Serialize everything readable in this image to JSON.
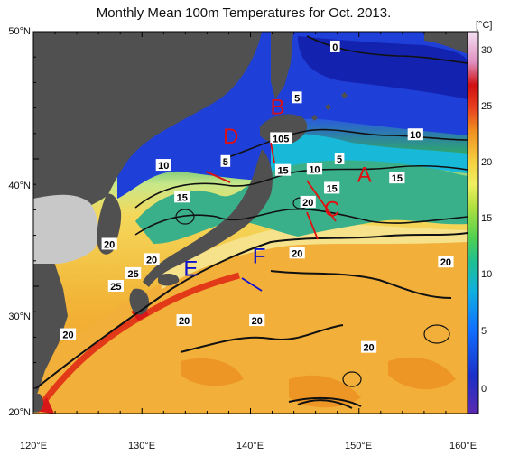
{
  "title": "Monthly Mean 100m Temperatures for Oct. 2013.",
  "colorbar": {
    "unit": "[°C]",
    "ticks": [
      "30",
      "25",
      "20",
      "15",
      "10",
      "5",
      "0"
    ]
  },
  "axes": {
    "lat_labels": [
      "50°N",
      "40°N",
      "30°N",
      "20°N"
    ],
    "lon_labels": [
      "120°E",
      "130°E",
      "140°E",
      "150°E",
      "160°E"
    ]
  },
  "contour_labels": [
    "0",
    "5",
    "10",
    "15",
    "20",
    "25"
  ],
  "region_labels": [
    "A",
    "B",
    "C",
    "D",
    "E",
    "F"
  ],
  "colors": {
    "land": "#505050",
    "no_data": "#c8c8c8",
    "warm": "#f0a020",
    "cold": "#1d3fd0",
    "mark_red": "#e01010",
    "mark_blue": "#1010d0"
  },
  "chart_data": {
    "type": "heatmap",
    "title": "Monthly Mean 100m Temperatures for Oct. 2013.",
    "variable": "temperature at 100 m depth",
    "unit": "°C",
    "lon_range": [
      120,
      160
    ],
    "lat_range": [
      20,
      50
    ],
    "colorbar_range": [
      -2,
      32
    ],
    "regions": [
      {
        "id": "A",
        "lon": 150.5,
        "lat": 38.2
      },
      {
        "id": "B",
        "lon": 142.5,
        "lat": 43.5
      },
      {
        "id": "C",
        "lon": 147.5,
        "lat": 35.5
      },
      {
        "id": "D",
        "lon": 138.2,
        "lat": 41.2
      },
      {
        "id": "E",
        "lon": 134.5,
        "lat": 30.8
      },
      {
        "id": "F",
        "lon": 140.8,
        "lat": 31.8
      }
    ],
    "contour_labels": [
      {
        "text": "0",
        "lon": 147.8,
        "lat": 48.8
      },
      {
        "text": "5",
        "lon": 144.3,
        "lat": 44.8
      },
      {
        "text": "5",
        "lon": 137.7,
        "lat": 39.8
      },
      {
        "text": "5",
        "lon": 148.2,
        "lat": 40.0
      },
      {
        "text": "105",
        "lon": 142.8,
        "lat": 41.6
      },
      {
        "text": "10",
        "lon": 132.0,
        "lat": 39.5
      },
      {
        "text": "10",
        "lon": 145.9,
        "lat": 39.2
      },
      {
        "text": "10",
        "lon": 155.2,
        "lat": 41.9
      },
      {
        "text": "15",
        "lon": 133.7,
        "lat": 37.0
      },
      {
        "text": "15",
        "lon": 143.0,
        "lat": 39.1
      },
      {
        "text": "15",
        "lon": 147.5,
        "lat": 37.7
      },
      {
        "text": "15",
        "lon": 153.5,
        "lat": 38.5
      },
      {
        "text": "20",
        "lon": 127.0,
        "lat": 33.3
      },
      {
        "text": "20",
        "lon": 130.9,
        "lat": 32.1
      },
      {
        "text": "20",
        "lon": 145.3,
        "lat": 36.6
      },
      {
        "text": "20",
        "lon": 144.3,
        "lat": 32.6
      },
      {
        "text": "20",
        "lon": 158.0,
        "lat": 31.9
      },
      {
        "text": "20",
        "lon": 133.9,
        "lat": 27.3
      },
      {
        "text": "20",
        "lon": 140.6,
        "lat": 27.3
      },
      {
        "text": "20",
        "lon": 123.2,
        "lat": 26.2
      },
      {
        "text": "20",
        "lon": 150.9,
        "lat": 25.2
      },
      {
        "text": "25",
        "lon": 127.6,
        "lat": 30.0
      },
      {
        "text": "25",
        "lon": 129.2,
        "lat": 31.0
      }
    ]
  }
}
